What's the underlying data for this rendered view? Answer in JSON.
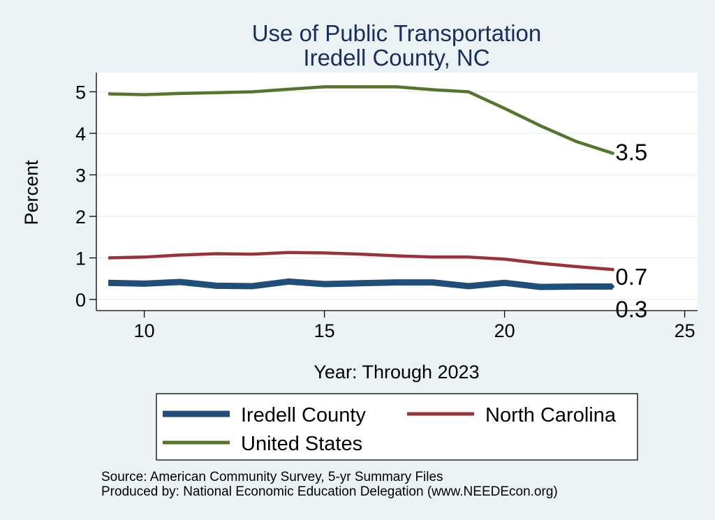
{
  "chart_data": {
    "type": "line",
    "title": "Use of Public Transportation",
    "subtitle": "Iredell County, NC",
    "xlabel": "Year: Through 2023",
    "ylabel": "Percent",
    "xlim": [
      9,
      25
    ],
    "ylim": [
      0,
      5.2
    ],
    "xticks": [
      10,
      15,
      20,
      25
    ],
    "yticks": [
      0,
      1,
      2,
      3,
      4,
      5
    ],
    "grid": true,
    "legend_position": "bottom",
    "series": [
      {
        "name": "Iredell County",
        "color": "#1f4e79",
        "x": [
          9,
          10,
          11,
          12,
          13,
          14,
          15,
          16,
          17,
          18,
          19,
          20,
          21,
          22,
          23
        ],
        "values": [
          0.4,
          0.38,
          0.42,
          0.33,
          0.32,
          0.43,
          0.37,
          0.39,
          0.41,
          0.41,
          0.32,
          0.4,
          0.3,
          0.31,
          0.31
        ],
        "end_label": "0.3"
      },
      {
        "name": "North Carolina",
        "color": "#993339",
        "x": [
          9,
          10,
          11,
          12,
          13,
          14,
          15,
          16,
          17,
          18,
          19,
          20,
          21,
          22,
          23
        ],
        "values": [
          1.0,
          1.02,
          1.07,
          1.1,
          1.09,
          1.13,
          1.12,
          1.09,
          1.05,
          1.02,
          1.02,
          0.97,
          0.87,
          0.79,
          0.72
        ],
        "end_label": "0.7"
      },
      {
        "name": "United States",
        "color": "#55752f",
        "x": [
          9,
          10,
          11,
          12,
          13,
          14,
          15,
          16,
          17,
          18,
          19,
          20,
          21,
          22,
          23
        ],
        "values": [
          4.95,
          4.93,
          4.96,
          4.98,
          5.0,
          5.06,
          5.12,
          5.12,
          5.12,
          5.05,
          5.0,
          4.6,
          4.18,
          3.8,
          3.52
        ],
        "end_label": "3.5"
      }
    ],
    "notes": [
      "Source: American Community Survey, 5-yr Summary Files",
      "Produced by: National Economic Education Delegation (www.NEEDEcon.org)"
    ]
  }
}
